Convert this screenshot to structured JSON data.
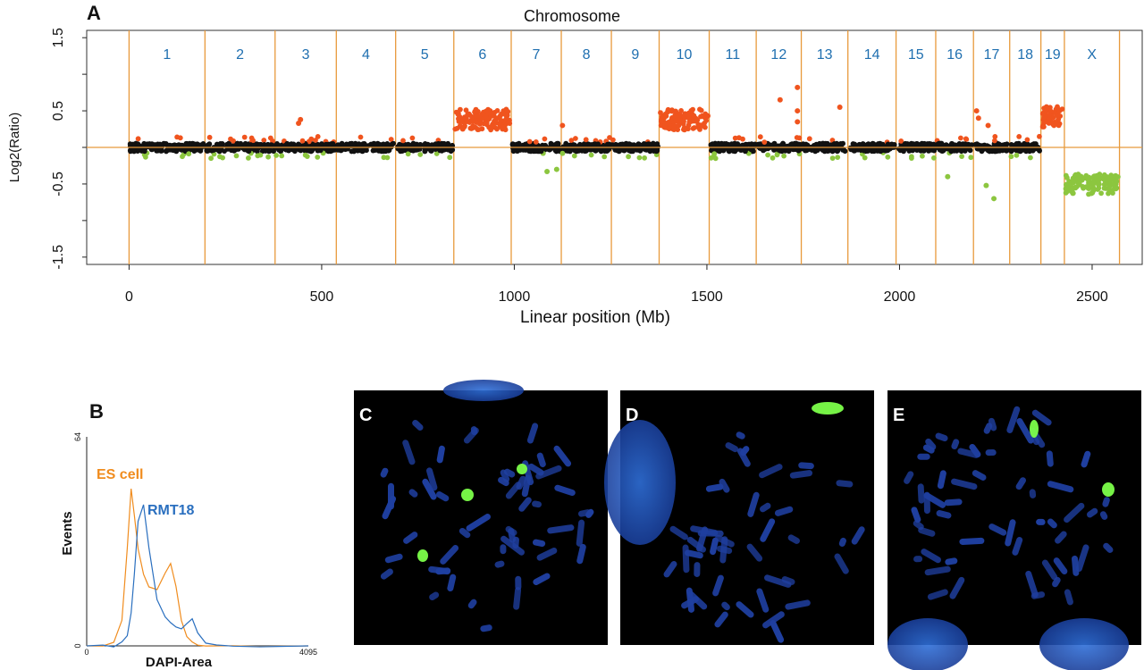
{
  "panels": {
    "A": "A",
    "B": "B",
    "C": "C",
    "D": "D",
    "E": "E"
  },
  "colors": {
    "gain": "#f0541e",
    "loss": "#8cc63f",
    "neutral": "#111111",
    "boundary": "#e89a3c",
    "chrom_label": "#1f6fb0",
    "es_cell": "#f08c1e",
    "rmt18": "#2a6fbf",
    "dapi": "#1f3fa0",
    "fish": "#7cff4a"
  },
  "chart_data": [
    {
      "type": "scatter",
      "title": "Chromosome",
      "xlabel": "Linear position (Mb)",
      "ylabel": "Log2(Ratio)",
      "xlim": [
        -110,
        2630
      ],
      "ylim": [
        -1.6,
        1.6
      ],
      "xticks": [
        0,
        500,
        1000,
        1500,
        2000,
        2500
      ],
      "yticks": [
        1.5,
        0.5,
        -0.5,
        -1.5
      ],
      "grid": false,
      "reference_line": 0,
      "chromosome_boundaries": [
        0,
        197,
        379,
        538,
        692,
        843,
        992,
        1122,
        1252,
        1376,
        1506,
        1628,
        1745,
        1866,
        1991,
        2094,
        2192,
        2286,
        2367,
        2428,
        2571
      ],
      "chromosomes": [
        {
          "label": "1",
          "start": 0,
          "end": 197,
          "level": 0.0
        },
        {
          "label": "2",
          "start": 197,
          "end": 379,
          "level": 0.0
        },
        {
          "label": "3",
          "start": 379,
          "end": 538,
          "level": 0.0
        },
        {
          "label": "4",
          "start": 538,
          "end": 692,
          "level": 0.0
        },
        {
          "label": "5",
          "start": 692,
          "end": 843,
          "level": 0.0
        },
        {
          "label": "6",
          "start": 843,
          "end": 992,
          "level": 0.38
        },
        {
          "label": "7",
          "start": 992,
          "end": 1122,
          "level": 0.0
        },
        {
          "label": "8",
          "start": 1122,
          "end": 1252,
          "level": 0.0
        },
        {
          "label": "9",
          "start": 1252,
          "end": 1376,
          "level": 0.0
        },
        {
          "label": "10",
          "start": 1376,
          "end": 1506,
          "level": 0.38
        },
        {
          "label": "11",
          "start": 1506,
          "end": 1628,
          "level": 0.0
        },
        {
          "label": "12",
          "start": 1628,
          "end": 1745,
          "level": 0.0
        },
        {
          "label": "13",
          "start": 1745,
          "end": 1866,
          "level": 0.0
        },
        {
          "label": "14",
          "start": 1866,
          "end": 1991,
          "level": 0.0
        },
        {
          "label": "15",
          "start": 1991,
          "end": 2094,
          "level": 0.0
        },
        {
          "label": "16",
          "start": 2094,
          "end": 2192,
          "level": 0.0
        },
        {
          "label": "17",
          "start": 2192,
          "end": 2286,
          "level": 0.0
        },
        {
          "label": "18",
          "start": 2286,
          "end": 2367,
          "level": 0.0
        },
        {
          "label": "19",
          "start": 2367,
          "end": 2428,
          "level": 0.42
        },
        {
          "label": "X",
          "start": 2428,
          "end": 2571,
          "level": -0.5
        }
      ],
      "outliers": [
        {
          "x": 445,
          "y": 0.38,
          "status": "gain"
        },
        {
          "x": 440,
          "y": 0.33,
          "status": "gain"
        },
        {
          "x": 1125,
          "y": 0.3,
          "status": "gain"
        },
        {
          "x": 1690,
          "y": 0.65,
          "status": "gain"
        },
        {
          "x": 1735,
          "y": 0.82,
          "status": "gain"
        },
        {
          "x": 1735,
          "y": 0.5,
          "status": "gain"
        },
        {
          "x": 1735,
          "y": 0.35,
          "status": "gain"
        },
        {
          "x": 1845,
          "y": 0.55,
          "status": "gain"
        },
        {
          "x": 2200,
          "y": 0.5,
          "status": "gain"
        },
        {
          "x": 2205,
          "y": 0.4,
          "status": "gain"
        },
        {
          "x": 2230,
          "y": 0.3,
          "status": "gain"
        },
        {
          "x": 1110,
          "y": -0.3,
          "status": "loss"
        },
        {
          "x": 1085,
          "y": -0.33,
          "status": "loss"
        },
        {
          "x": 2125,
          "y": -0.4,
          "status": "loss"
        },
        {
          "x": 2225,
          "y": -0.52,
          "status": "loss"
        },
        {
          "x": 2245,
          "y": -0.7,
          "status": "loss"
        }
      ]
    },
    {
      "type": "line",
      "xlabel": "DAPI-Area",
      "ylabel": "Events",
      "xlim": [
        0,
        4095
      ],
      "ylim": [
        0,
        64
      ],
      "xticks": [
        0,
        4095
      ],
      "yticks": [
        0,
        64
      ],
      "x": [
        0,
        300,
        500,
        650,
        750,
        820,
        880,
        950,
        1050,
        1150,
        1300,
        1450,
        1550,
        1650,
        1750,
        1850,
        1950,
        2050,
        2200,
        2400,
        2700,
        3200,
        4095
      ],
      "series": [
        {
          "name": "ES cell",
          "values": [
            0,
            0,
            1,
            8,
            30,
            48,
            40,
            30,
            22,
            18,
            17,
            22,
            25,
            18,
            8,
            3,
            1,
            0,
            0,
            0,
            0,
            0,
            0
          ]
        },
        {
          "name": "RMT18",
          "values": [
            0,
            0,
            0,
            1,
            3,
            10,
            22,
            38,
            43,
            30,
            14,
            9,
            7,
            6,
            5,
            7,
            8,
            4,
            1,
            0,
            0,
            0,
            0
          ]
        }
      ]
    }
  ],
  "micrographs": [
    {
      "panel": "C",
      "signals": 3
    },
    {
      "panel": "D",
      "signals": 1
    },
    {
      "panel": "E",
      "signals": 2
    }
  ]
}
